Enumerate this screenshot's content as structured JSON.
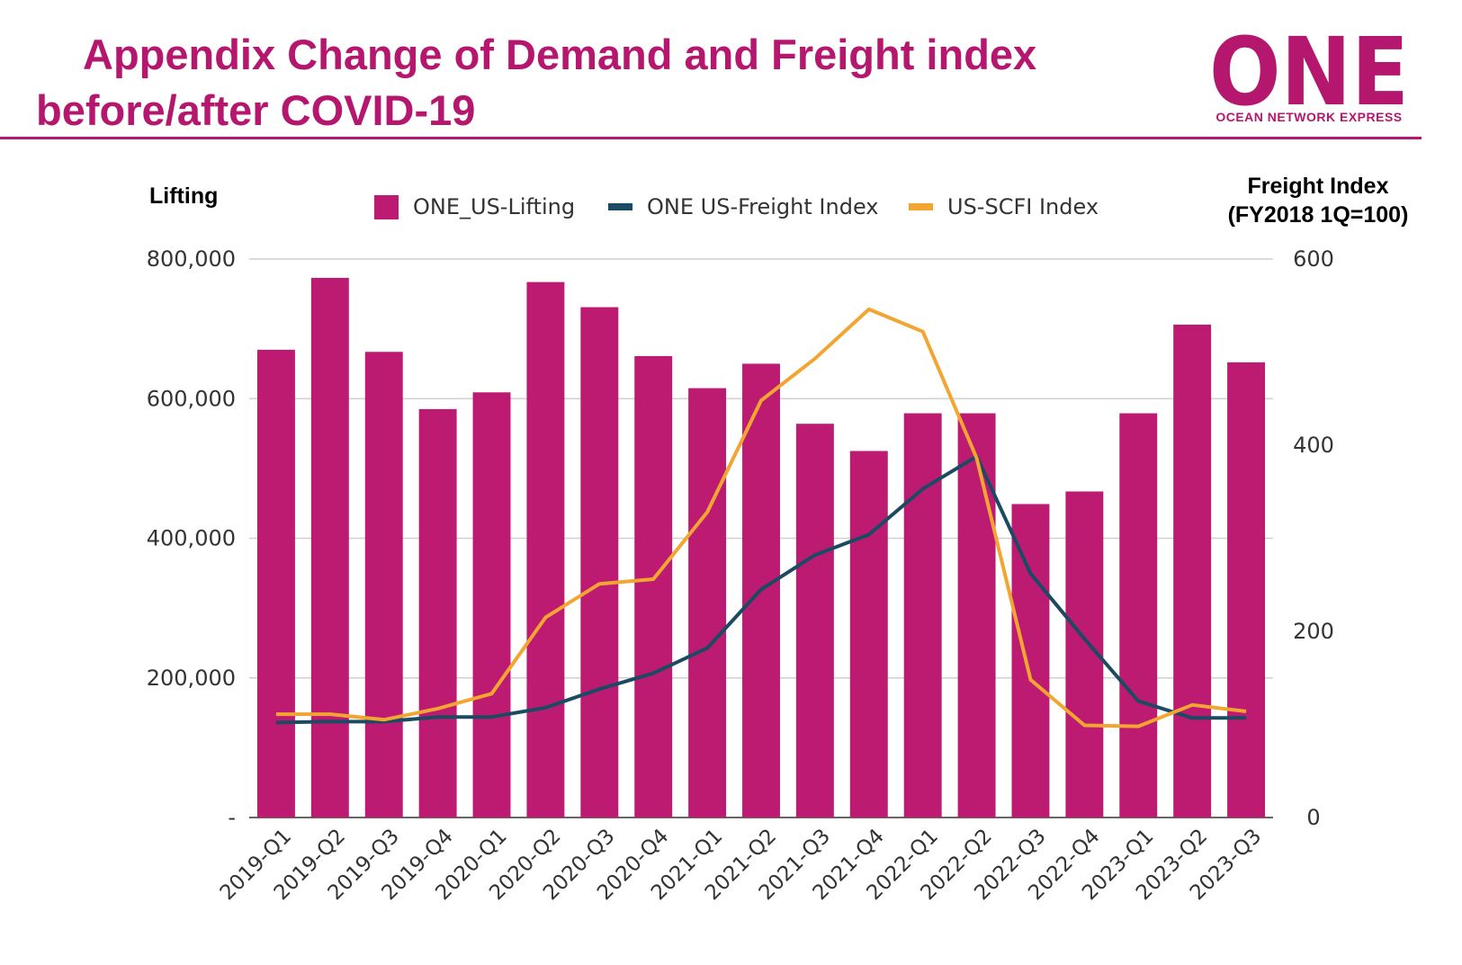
{
  "header": {
    "title_line1": "Appendix Change of Demand and Freight index",
    "title_line2": "before/after COVID-19",
    "logo_text": "ONE",
    "logo_subtitle": "OCEAN NETWORK EXPRESS"
  },
  "colors": {
    "brand": "#b5176f",
    "bar": "#bd1a72",
    "freight_line": "#1b4a63",
    "scfi_line": "#f2a631",
    "grid": "#d0d0d0"
  },
  "chart_data": {
    "type": "bar",
    "title": "",
    "ylabel": "Lifting",
    "ylabel_right_line1": "Freight Index",
    "ylabel_right_line2": "(FY2018 1Q=100)",
    "ylim": [
      0,
      800000
    ],
    "ylim_right": [
      0,
      600
    ],
    "yticks": [
      "-",
      "200,000",
      "400,000",
      "600,000",
      "800,000"
    ],
    "yticks_right": [
      "0",
      "200",
      "400",
      "600"
    ],
    "grid": true,
    "legend_position": "top",
    "categories": [
      "2019-Q1",
      "2019-Q2",
      "2019-Q3",
      "2019-Q4",
      "2020-Q1",
      "2020-Q2",
      "2020-Q3",
      "2020-Q4",
      "2021-Q1",
      "2021-Q2",
      "2021-Q3",
      "2021-Q4",
      "2022-Q1",
      "2022-Q2",
      "2022-Q3",
      "2022-Q4",
      "2023-Q1",
      "2023-Q2",
      "2023-Q3"
    ],
    "series": [
      {
        "name": "ONE_US-Lifting",
        "type": "bar",
        "axis": "left",
        "values": [
          670000,
          773000,
          667000,
          585000,
          609000,
          767000,
          731000,
          661000,
          615000,
          650000,
          564000,
          525000,
          579000,
          579000,
          449000,
          467000,
          579000,
          706000,
          652000
        ]
      },
      {
        "name": "ONE US-Freight Index",
        "type": "line",
        "axis": "right",
        "values": [
          102,
          103,
          103,
          108,
          108,
          118,
          138,
          155,
          182,
          245,
          282,
          304,
          353,
          388,
          262,
          192,
          125,
          107,
          107
        ]
      },
      {
        "name": "US-SCFI Index",
        "type": "line",
        "axis": "right",
        "values": [
          111,
          111,
          105,
          117,
          133,
          215,
          251,
          256,
          328,
          448,
          493,
          546,
          522,
          386,
          148,
          99,
          98,
          121,
          114
        ]
      }
    ]
  }
}
